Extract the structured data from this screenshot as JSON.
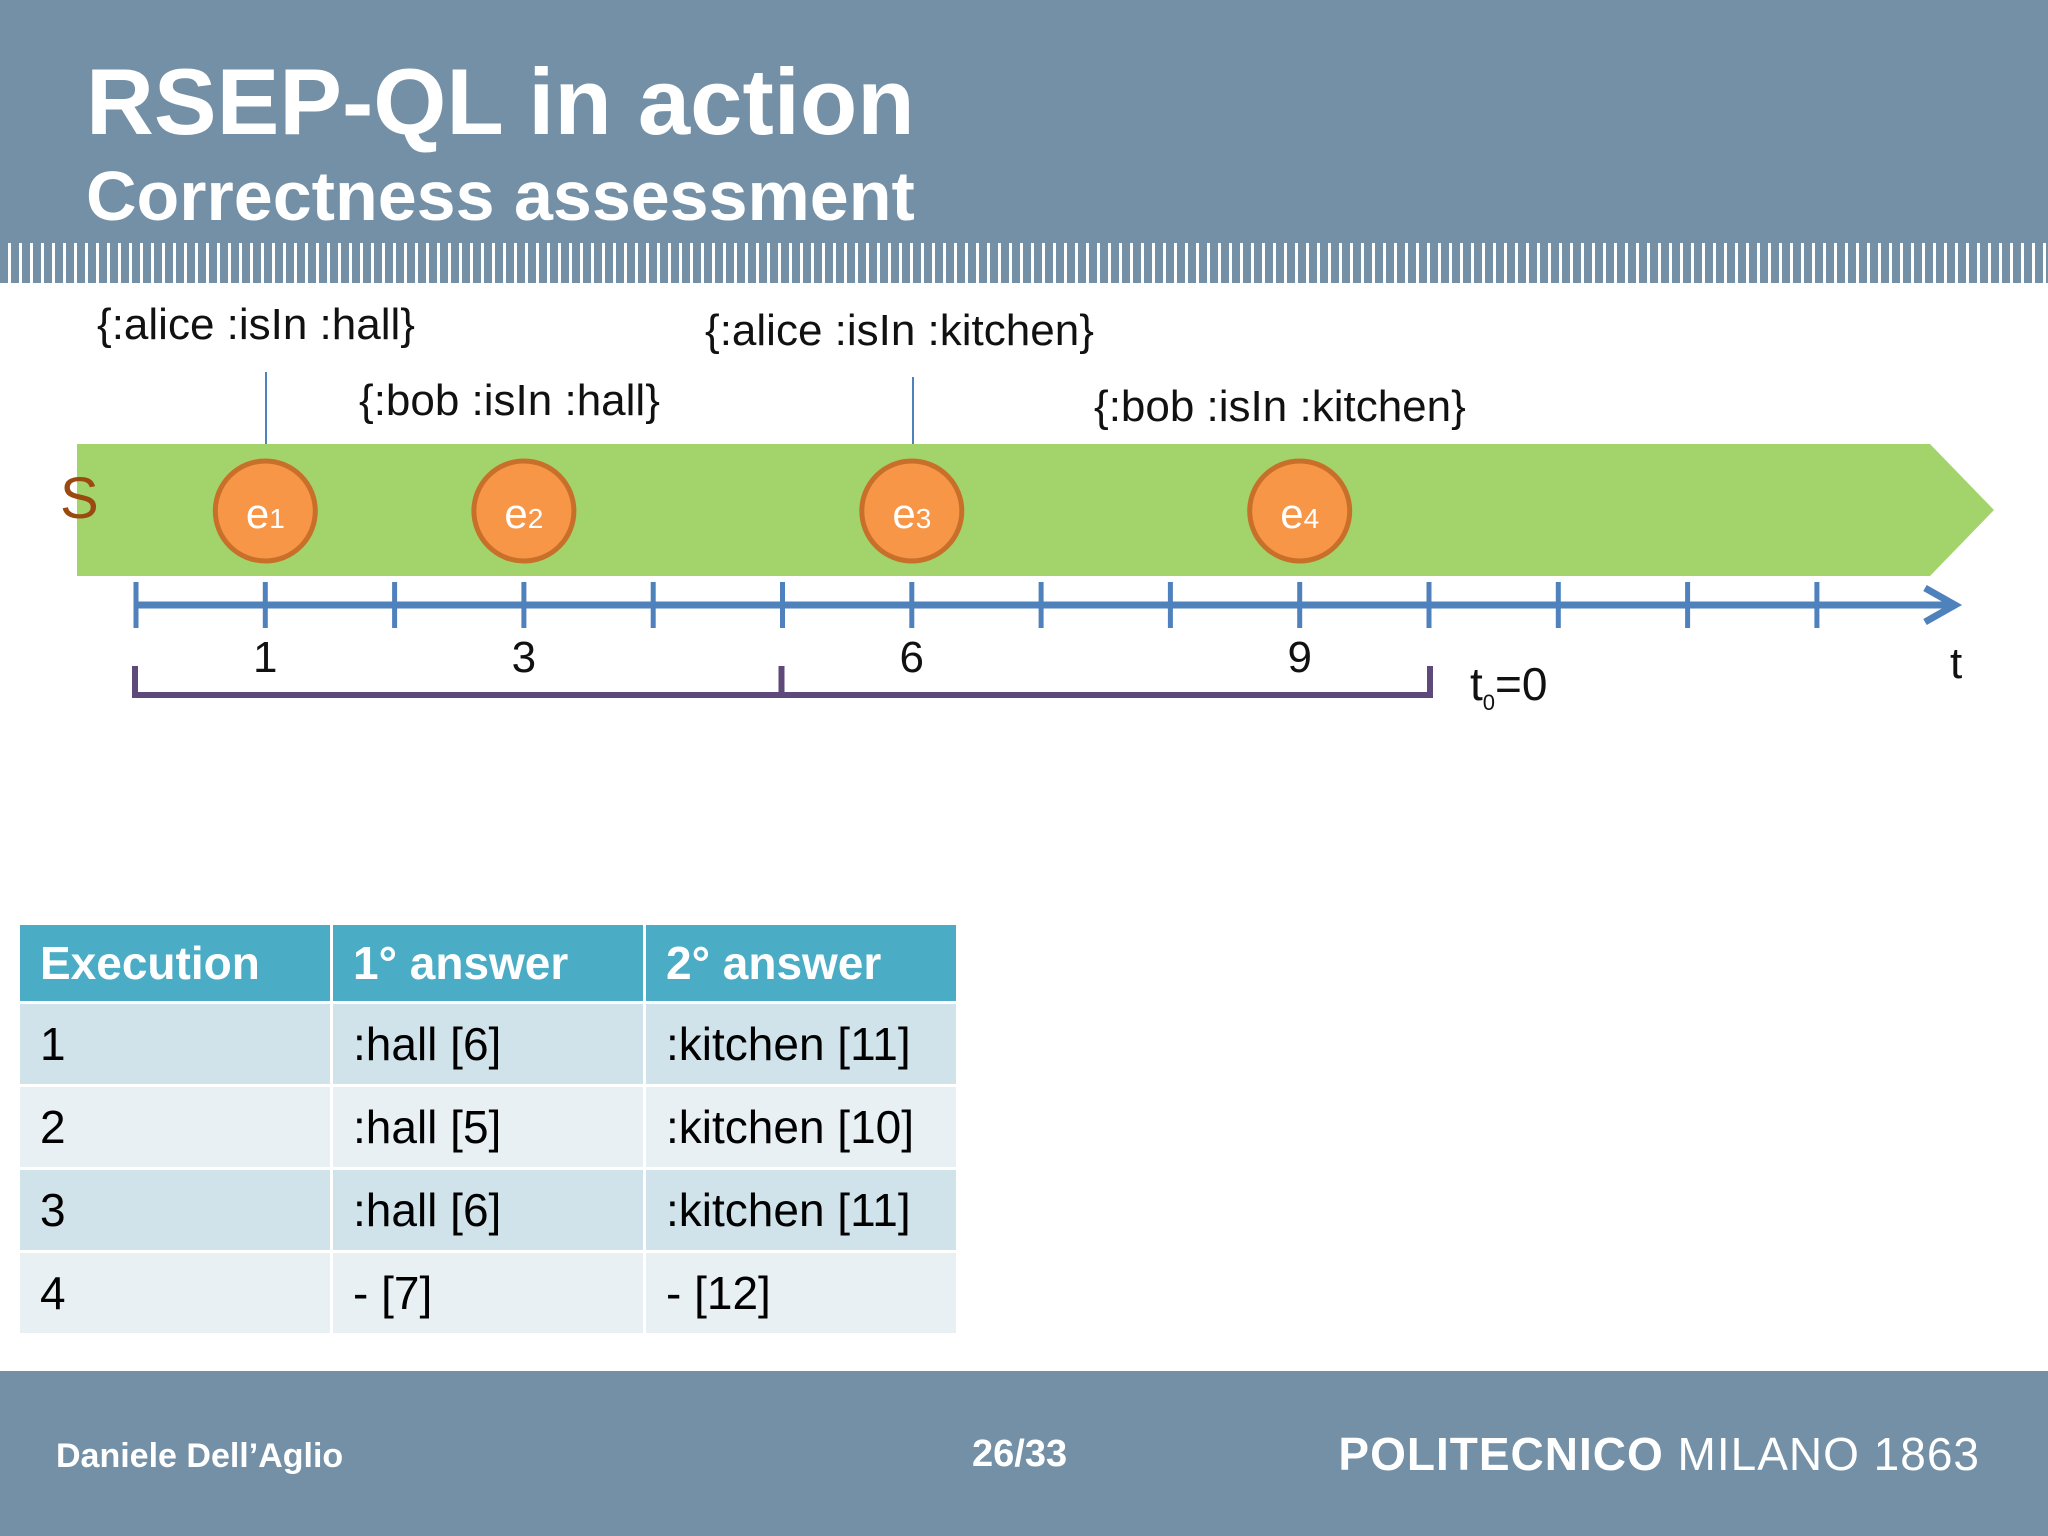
{
  "slide": {
    "title": "RSEP-QL in action",
    "subtitle": "Correctness assessment"
  },
  "diagram": {
    "stream_label": "S",
    "axis_label": "t",
    "t0_label": "t",
    "t0_sub": "0",
    "t0_value": "=0",
    "tick_count": 14,
    "tick_labels": [
      {
        "t": 1,
        "label": "1"
      },
      {
        "t": 3,
        "label": "3"
      },
      {
        "t": 6,
        "label": "6"
      },
      {
        "t": 9,
        "label": "9"
      }
    ],
    "events": [
      {
        "name": "e",
        "sub": "1",
        "t": 1,
        "triple": "{:alice :isIn :hall}"
      },
      {
        "name": "e",
        "sub": "2",
        "t": 3,
        "triple": "{:bob :isIn :hall}"
      },
      {
        "name": "e",
        "sub": "3",
        "t": 6,
        "triple": "{:alice :isIn :kitchen}"
      },
      {
        "name": "e",
        "sub": "4",
        "t": 9,
        "triple": "{:bob :isIn :kitchen}"
      }
    ],
    "windows": [
      [
        0,
        5
      ],
      [
        5,
        10
      ]
    ],
    "colors": {
      "stream": "#a3d46c",
      "event": "#f79646",
      "event_border": "#c8702a",
      "axis": "#4f81bd",
      "window": "#5f497a",
      "stream_label": "#9a4a10"
    }
  },
  "table": {
    "headers": [
      "Execution",
      "1° answer",
      "2° answer"
    ],
    "rows": [
      [
        "1",
        ":hall [6]",
        ":kitchen [11]"
      ],
      [
        "2",
        ":hall [5]",
        ":kitchen [10]"
      ],
      [
        "3",
        ":hall [6]",
        ":kitchen [11]"
      ],
      [
        "4",
        "- [7]",
        "- [12]"
      ]
    ]
  },
  "footer": {
    "author": "Daniele Dell’Aglio",
    "page": "26/33",
    "logo_bold": "POLITECNICO",
    "logo_rest": " MILANO 1863"
  }
}
